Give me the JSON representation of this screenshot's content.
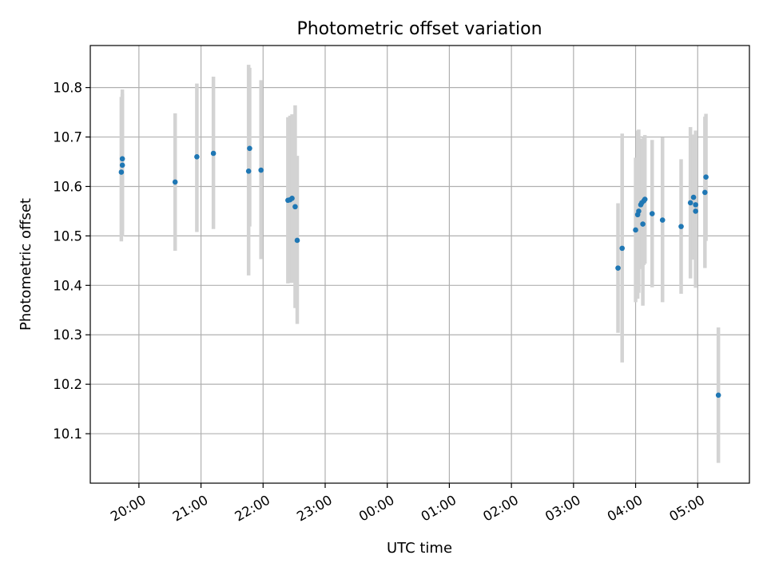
{
  "chart_data": {
    "type": "scatter",
    "title": "Photometric offset variation",
    "xlabel": "UTC time",
    "ylabel": "Photometric offset",
    "x_tick_labels": [
      "20:00",
      "21:00",
      "22:00",
      "23:00",
      "00:00",
      "01:00",
      "02:00",
      "03:00",
      "04:00",
      "05:00"
    ],
    "y_tick_labels": [
      "10.1",
      "10.2",
      "10.3",
      "10.4",
      "10.5",
      "10.6",
      "10.7",
      "10.8"
    ],
    "y_ticks": [
      10.1,
      10.2,
      10.3,
      10.4,
      10.5,
      10.6,
      10.7,
      10.8
    ],
    "x_ticks": [
      "20:00",
      "21:00",
      "22:00",
      "23:00",
      "00:00",
      "01:00",
      "02:00",
      "03:00",
      "04:00",
      "05:00"
    ],
    "xlim": [
      "19:13",
      "05:50"
    ],
    "ylim": [
      10.0,
      10.885
    ],
    "grid": true,
    "colors": {
      "points": "#1f77b4",
      "errorbars": "#d3d3d3",
      "grid": "#b0b0b0"
    },
    "series": [
      {
        "points": [
          {
            "x": "19:43",
            "y": 10.629,
            "lo": 10.489,
            "hi": 10.781
          },
          {
            "x": "19:44",
            "y": 10.643,
            "lo": 10.499,
            "hi": 10.787
          },
          {
            "x": "19:44",
            "y": 10.656,
            "lo": 10.51,
            "hi": 10.796
          },
          {
            "x": "20:35",
            "y": 10.609,
            "lo": 10.47,
            "hi": 10.748
          },
          {
            "x": "20:56",
            "y": 10.66,
            "lo": 10.508,
            "hi": 10.808
          },
          {
            "x": "21:12",
            "y": 10.667,
            "lo": 10.514,
            "hi": 10.822
          },
          {
            "x": "21:46",
            "y": 10.631,
            "lo": 10.42,
            "hi": 10.846
          },
          {
            "x": "21:47",
            "y": 10.677,
            "lo": 10.519,
            "hi": 10.84
          },
          {
            "x": "21:58",
            "y": 10.633,
            "lo": 10.453,
            "hi": 10.815
          },
          {
            "x": "22:24",
            "y": 10.572,
            "lo": 10.404,
            "hi": 10.74
          },
          {
            "x": "22:26",
            "y": 10.573,
            "lo": 10.405,
            "hi": 10.743
          },
          {
            "x": "22:28",
            "y": 10.576,
            "lo": 10.405,
            "hi": 10.746
          },
          {
            "x": "22:31",
            "y": 10.559,
            "lo": 10.354,
            "hi": 10.764
          },
          {
            "x": "22:33",
            "y": 10.491,
            "lo": 10.322,
            "hi": 10.662
          },
          {
            "x": "03:43",
            "y": 10.435,
            "lo": 10.304,
            "hi": 10.566
          },
          {
            "x": "03:47",
            "y": 10.475,
            "lo": 10.244,
            "hi": 10.707
          },
          {
            "x": "04:00",
            "y": 10.512,
            "lo": 10.366,
            "hi": 10.658
          },
          {
            "x": "04:02",
            "y": 10.543,
            "lo": 10.373,
            "hi": 10.713
          },
          {
            "x": "04:03",
            "y": 10.55,
            "lo": 10.385,
            "hi": 10.715
          },
          {
            "x": "04:05",
            "y": 10.563,
            "lo": 10.433,
            "hi": 10.694
          },
          {
            "x": "04:06",
            "y": 10.567,
            "lo": 10.437,
            "hi": 10.697
          },
          {
            "x": "04:07",
            "y": 10.524,
            "lo": 10.359,
            "hi": 10.688
          },
          {
            "x": "04:08",
            "y": 10.571,
            "lo": 10.441,
            "hi": 10.7
          },
          {
            "x": "04:09",
            "y": 10.574,
            "lo": 10.444,
            "hi": 10.704
          },
          {
            "x": "04:16",
            "y": 10.545,
            "lo": 10.396,
            "hi": 10.694
          },
          {
            "x": "04:26",
            "y": 10.532,
            "lo": 10.366,
            "hi": 10.699
          },
          {
            "x": "04:44",
            "y": 10.519,
            "lo": 10.383,
            "hi": 10.655
          },
          {
            "x": "04:53",
            "y": 10.567,
            "lo": 10.414,
            "hi": 10.72
          },
          {
            "x": "04:56",
            "y": 10.578,
            "lo": 10.452,
            "hi": 10.705
          },
          {
            "x": "04:58",
            "y": 10.55,
            "lo": 10.395,
            "hi": 10.706
          },
          {
            "x": "04:58",
            "y": 10.563,
            "lo": 10.413,
            "hi": 10.713
          },
          {
            "x": "05:07",
            "y": 10.588,
            "lo": 10.435,
            "hi": 10.741
          },
          {
            "x": "05:08",
            "y": 10.619,
            "lo": 10.49,
            "hi": 10.747
          },
          {
            "x": "05:20",
            "y": 10.178,
            "lo": 10.041,
            "hi": 10.315
          }
        ]
      }
    ]
  }
}
